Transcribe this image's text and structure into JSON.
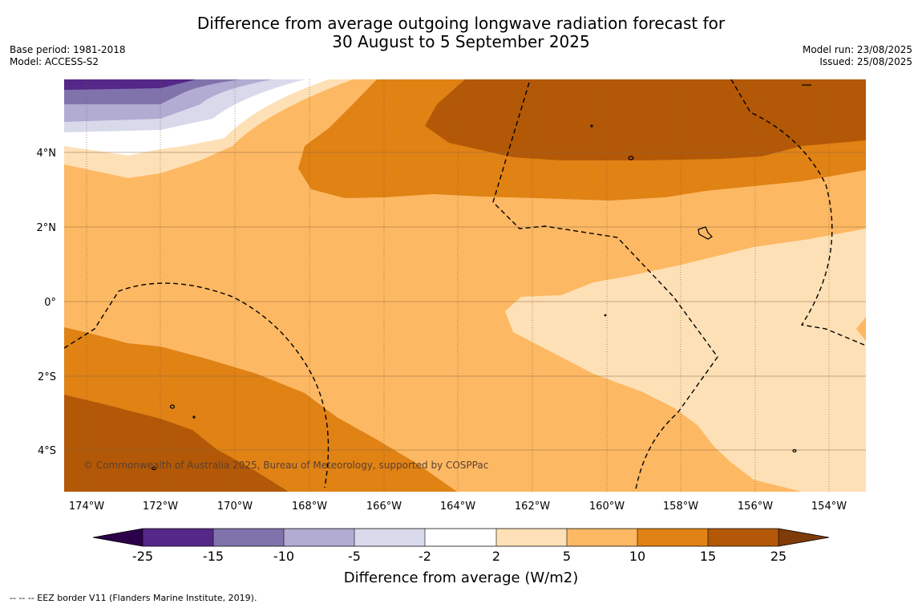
{
  "title": {
    "line1": "Difference from average outgoing longwave radiation forecast for",
    "line2": "30 August to 5 September 2025"
  },
  "meta_left": {
    "base_period": "Base period: 1981-2018",
    "model": "Model: ACCESS-S2"
  },
  "meta_right": {
    "model_run": "Model run: 23/08/2025",
    "issued": "Issued: 25/08/2025"
  },
  "map": {
    "longitude_labels": [
      "174°W",
      "172°W",
      "170°W",
      "168°W",
      "166°W",
      "164°W",
      "162°W",
      "160°W",
      "158°W",
      "156°W",
      "154°W"
    ],
    "latitude_labels": [
      "4°N",
      "2°N",
      "0°",
      "2°S",
      "4°S"
    ],
    "copyright": "© Commonwealth of Australia 2025, Bureau of Meteorology, supported by COSPPac"
  },
  "colorbar": {
    "title": "Difference from average (W/m2)",
    "ticks": [
      "-25",
      "-15",
      "-10",
      "-5",
      "-2",
      "2",
      "5",
      "10",
      "15",
      "25"
    ],
    "colors": [
      "#542788",
      "#8073ac",
      "#b2abd2",
      "#d8daeb",
      "#ffffff",
      "#fee0b6",
      "#fdb863",
      "#e08214",
      "#b35806"
    ],
    "extend_min_color": "#2d004b",
    "extend_max_color": "#7f3b08"
  },
  "footnote": "--  --  -- EEZ border V11 (Flanders Marine Institute, 2019)."
}
